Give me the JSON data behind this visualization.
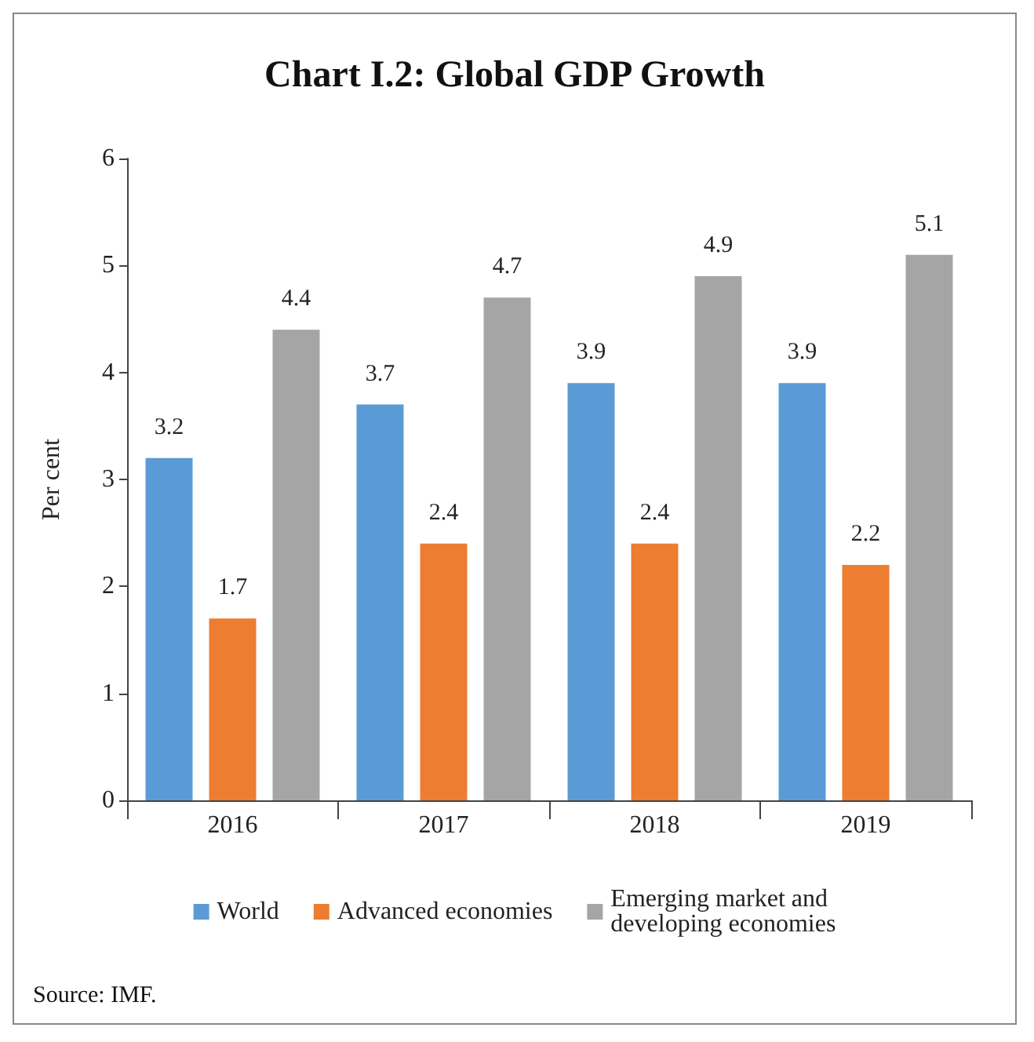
{
  "chart_data": {
    "type": "bar",
    "title": "Chart I.2: Global GDP Growth",
    "ylabel": "Per cent",
    "categories": [
      "2016",
      "2017",
      "2018",
      "2019"
    ],
    "series": [
      {
        "name": "World",
        "color": "#5b9bd5",
        "values": [
          3.2,
          3.7,
          3.9,
          3.9
        ]
      },
      {
        "name": "Advanced economies",
        "color": "#ed7d31",
        "values": [
          1.7,
          2.4,
          2.4,
          2.2
        ]
      },
      {
        "name": "Emerging market and developing economies",
        "color": "#a5a5a5",
        "values": [
          4.4,
          4.7,
          4.9,
          5.1
        ]
      }
    ],
    "ylim": [
      0,
      6
    ],
    "yticks": [
      0,
      1,
      2,
      3,
      4,
      5,
      6
    ],
    "grid": false,
    "legend": "bottom",
    "data_labels": true,
    "annotations": [
      "Source: IMF."
    ]
  }
}
